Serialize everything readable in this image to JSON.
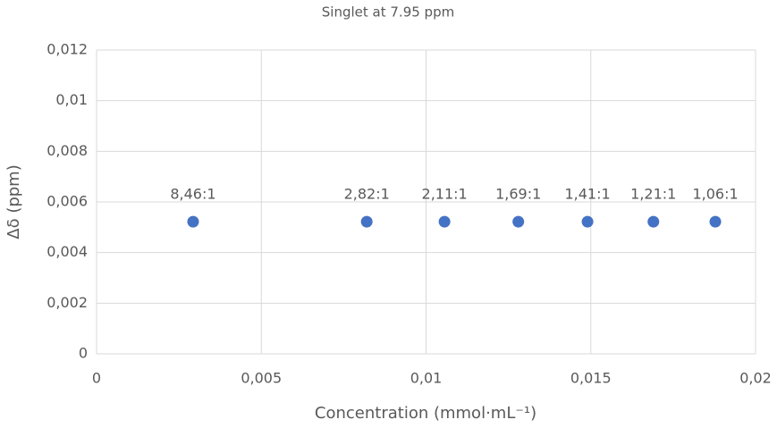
{
  "chart_data": {
    "type": "scatter",
    "title": "Singlet at 7.95 ppm",
    "xlabel": "Concentration (mmol·mL⁻¹)",
    "ylabel": "Δδ (ppm)",
    "series": [
      {
        "name": "Singlet at 7.95 ppm",
        "color": "#4472c4",
        "x": [
          0.00293,
          0.0082,
          0.01056,
          0.0128,
          0.0149,
          0.0169,
          0.01878
        ],
        "values": [
          0.00522,
          0.00522,
          0.00522,
          0.00522,
          0.00522,
          0.00522,
          0.00522
        ],
        "point_labels": [
          "8,46:1",
          "2,82:1",
          "2,11:1",
          "1,69:1",
          "1,41:1",
          "1,21:1",
          "1,06:1"
        ]
      }
    ],
    "xlim": [
      0,
      0.02
    ],
    "xticks": [
      0,
      {
        "value": 0.005,
        "label": "0,005"
      },
      {
        "value": 0.01,
        "label": "0,01"
      },
      {
        "value": 0.015,
        "label": "0,015"
      },
      {
        "value": 0.02,
        "label": "0,02"
      }
    ],
    "ylim": [
      0,
      0.012
    ],
    "yticks": [
      0,
      {
        "value": 0.002,
        "label": "0,002"
      },
      {
        "value": 0.004,
        "label": "0,004"
      },
      {
        "value": 0.006,
        "label": "0,006"
      },
      {
        "value": 0.008,
        "label": "0,008"
      },
      {
        "value": 0.01,
        "label": "0,01"
      },
      {
        "value": 0.012,
        "label": "0,012"
      }
    ],
    "grid": true
  }
}
